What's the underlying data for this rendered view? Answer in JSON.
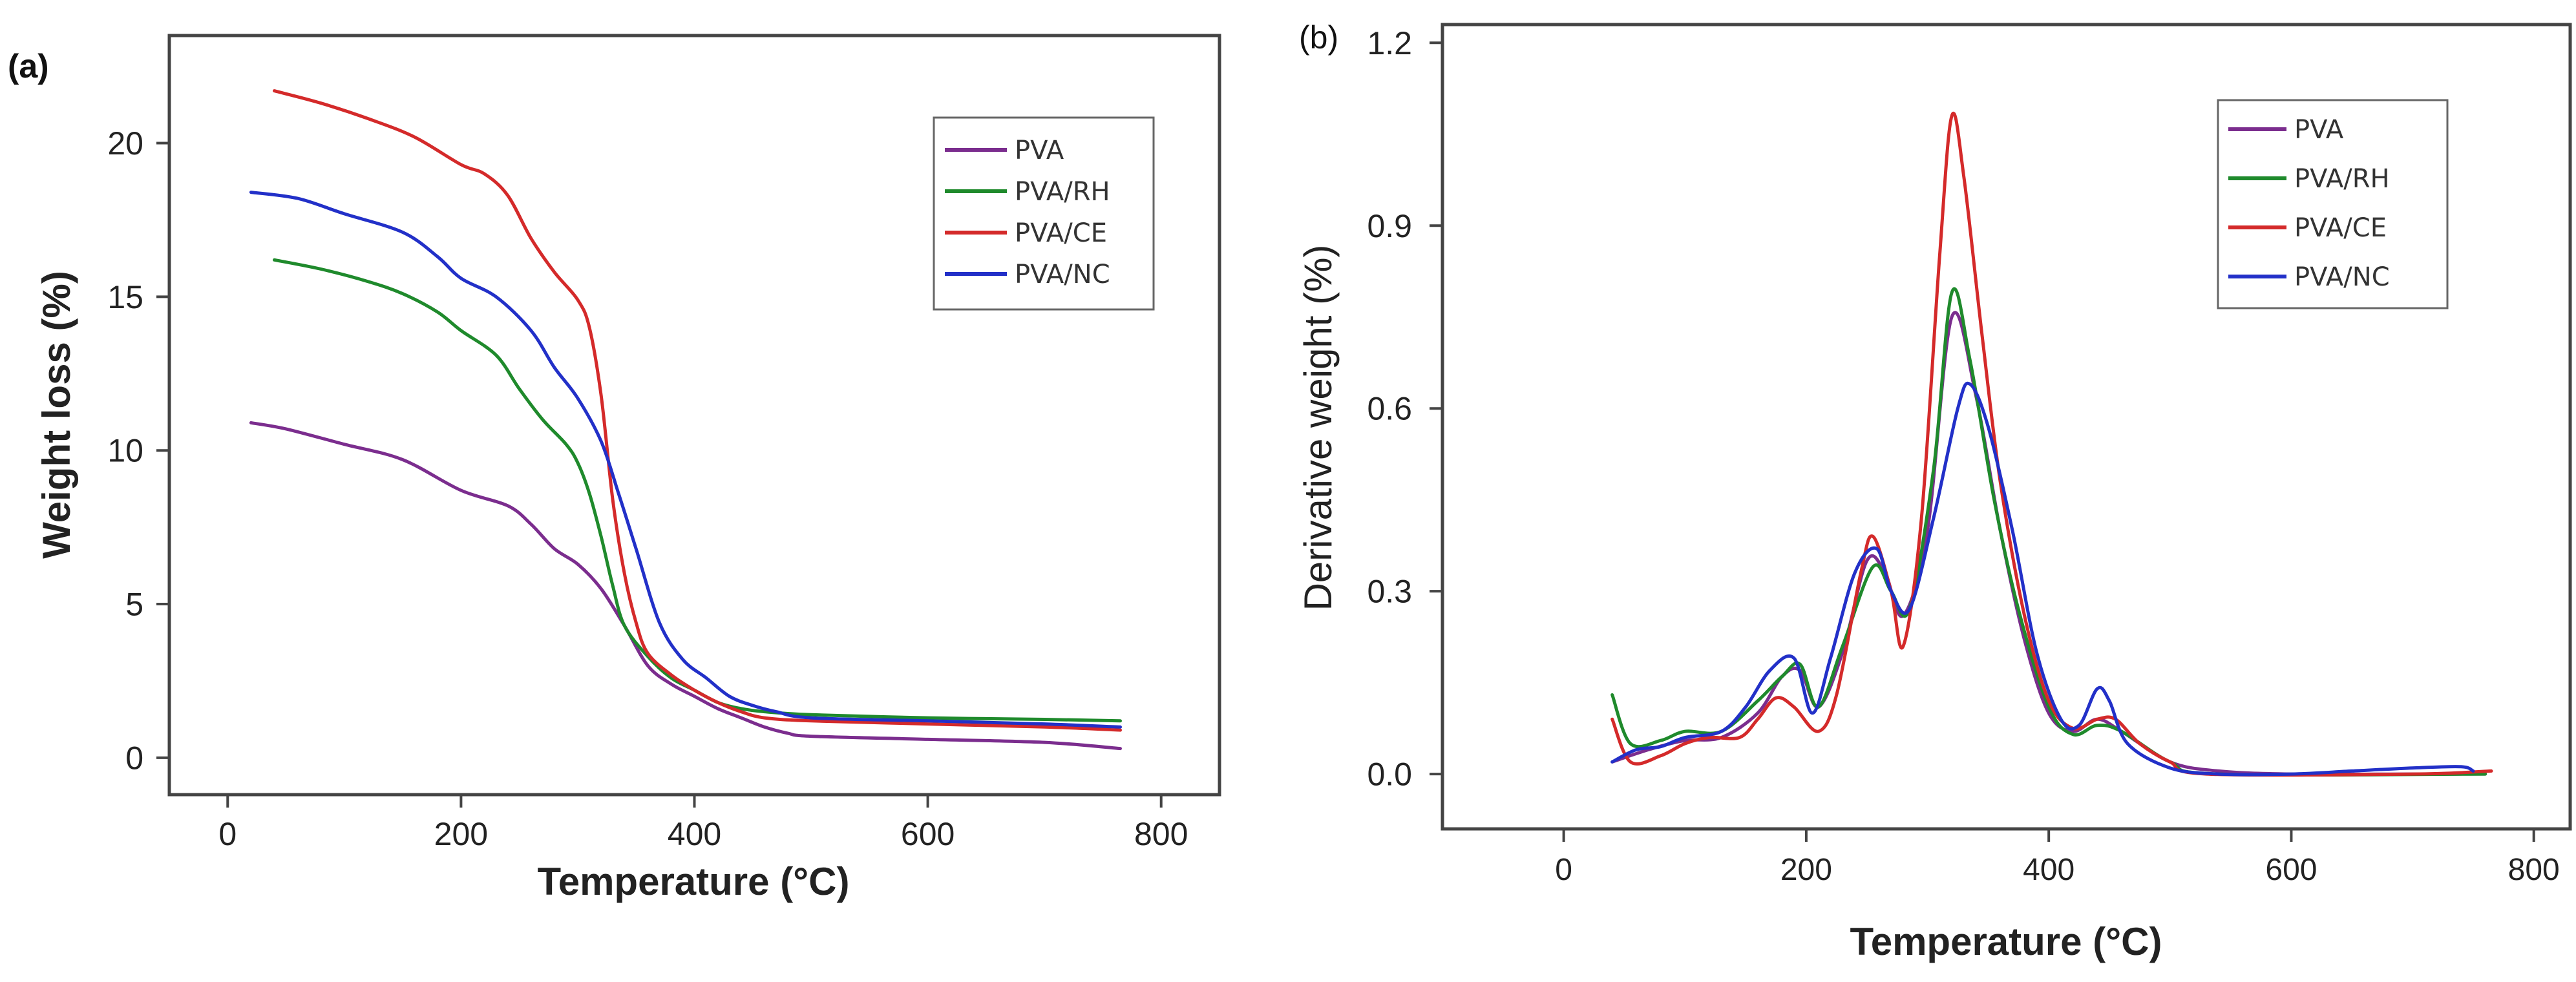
{
  "chart_data": [
    {
      "panel_label": "(a)",
      "type": "line",
      "xlabel": "Temperature (°C)",
      "ylabel": "Weight loss (%)",
      "xlim": [
        -50,
        850
      ],
      "ylim": [
        -1.2,
        23.5
      ],
      "xticks": [
        0,
        200,
        400,
        600,
        800
      ],
      "xtick_labels": [
        "0",
        "200",
        "400",
        "600",
        "800"
      ],
      "yticks": [
        0,
        5,
        10,
        15,
        20
      ],
      "ytick_labels": [
        "0",
        "5",
        "10",
        "15",
        "20"
      ],
      "legend_position": "top-right",
      "series": [
        {
          "name": "PVA",
          "color": "#7b2d8e",
          "points": [
            [
              20,
              10.9
            ],
            [
              50,
              10.7
            ],
            [
              100,
              10.2
            ],
            [
              150,
              9.7
            ],
            [
              200,
              8.7
            ],
            [
              240,
              8.2
            ],
            [
              260,
              7.6
            ],
            [
              280,
              6.8
            ],
            [
              300,
              6.3
            ],
            [
              320,
              5.5
            ],
            [
              340,
              4.3
            ],
            [
              360,
              3.0
            ],
            [
              380,
              2.4
            ],
            [
              400,
              2.0
            ],
            [
              420,
              1.6
            ],
            [
              440,
              1.3
            ],
            [
              460,
              1.0
            ],
            [
              480,
              0.8
            ],
            [
              500,
              0.7
            ],
            [
              600,
              0.6
            ],
            [
              700,
              0.5
            ],
            [
              765,
              0.3
            ]
          ]
        },
        {
          "name": "PVA/RH",
          "color": "#1f8a2c",
          "points": [
            [
              40,
              16.2
            ],
            [
              80,
              15.9
            ],
            [
              120,
              15.5
            ],
            [
              150,
              15.1
            ],
            [
              180,
              14.5
            ],
            [
              200,
              13.9
            ],
            [
              230,
              13.1
            ],
            [
              250,
              12.0
            ],
            [
              270,
              11.0
            ],
            [
              290,
              10.2
            ],
            [
              300,
              9.6
            ],
            [
              310,
              8.6
            ],
            [
              320,
              7.2
            ],
            [
              330,
              5.6
            ],
            [
              340,
              4.3
            ],
            [
              360,
              3.3
            ],
            [
              380,
              2.6
            ],
            [
              400,
              2.2
            ],
            [
              420,
              1.8
            ],
            [
              440,
              1.6
            ],
            [
              460,
              1.5
            ],
            [
              500,
              1.4
            ],
            [
              600,
              1.3
            ],
            [
              700,
              1.25
            ],
            [
              765,
              1.2
            ]
          ]
        },
        {
          "name": "PVA/CE",
          "color": "#d42a2a",
          "points": [
            [
              40,
              21.7
            ],
            [
              80,
              21.3
            ],
            [
              120,
              20.8
            ],
            [
              160,
              20.2
            ],
            [
              200,
              19.3
            ],
            [
              220,
              19.0
            ],
            [
              240,
              18.3
            ],
            [
              260,
              16.9
            ],
            [
              280,
              15.8
            ],
            [
              300,
              14.9
            ],
            [
              310,
              14.0
            ],
            [
              320,
              11.8
            ],
            [
              330,
              8.4
            ],
            [
              340,
              6.0
            ],
            [
              350,
              4.4
            ],
            [
              360,
              3.4
            ],
            [
              380,
              2.7
            ],
            [
              400,
              2.2
            ],
            [
              420,
              1.8
            ],
            [
              440,
              1.5
            ],
            [
              460,
              1.3
            ],
            [
              500,
              1.2
            ],
            [
              600,
              1.1
            ],
            [
              700,
              1.0
            ],
            [
              765,
              0.9
            ]
          ]
        },
        {
          "name": "PVA/NC",
          "color": "#2230c8",
          "points": [
            [
              20,
              18.4
            ],
            [
              60,
              18.2
            ],
            [
              100,
              17.7
            ],
            [
              150,
              17.1
            ],
            [
              180,
              16.3
            ],
            [
              200,
              15.6
            ],
            [
              230,
              15.0
            ],
            [
              260,
              13.9
            ],
            [
              280,
              12.7
            ],
            [
              300,
              11.7
            ],
            [
              320,
              10.3
            ],
            [
              335,
              8.6
            ],
            [
              350,
              6.8
            ],
            [
              370,
              4.4
            ],
            [
              390,
              3.2
            ],
            [
              410,
              2.6
            ],
            [
              430,
              2.0
            ],
            [
              450,
              1.7
            ],
            [
              470,
              1.5
            ],
            [
              500,
              1.3
            ],
            [
              600,
              1.2
            ],
            [
              700,
              1.1
            ],
            [
              765,
              1.0
            ]
          ]
        }
      ]
    },
    {
      "panel_label": "(b)",
      "type": "line",
      "xlabel": "Temperature (°C)",
      "ylabel": "Derivative weight (%)",
      "xlim": [
        -100,
        830
      ],
      "ylim": [
        -0.09,
        1.23
      ],
      "xticks": [
        0,
        200,
        400,
        600,
        800
      ],
      "xtick_labels": [
        "0",
        "200",
        "400",
        "600",
        "800"
      ],
      "yticks": [
        0.0,
        0.3,
        0.6,
        0.9,
        1.2
      ],
      "ytick_labels": [
        "0.0",
        "0.3",
        "0.6",
        "0.9",
        "1.2"
      ],
      "legend_position": "top-right",
      "series": [
        {
          "name": "PVA",
          "color": "#7b2d8e",
          "points": [
            [
              40,
              0.02
            ],
            [
              70,
              0.04
            ],
            [
              100,
              0.055
            ],
            [
              130,
              0.06
            ],
            [
              160,
              0.1
            ],
            [
              180,
              0.16
            ],
            [
              195,
              0.17
            ],
            [
              210,
              0.11
            ],
            [
              230,
              0.2
            ],
            [
              250,
              0.35
            ],
            [
              265,
              0.33
            ],
            [
              280,
              0.26
            ],
            [
              300,
              0.4
            ],
            [
              320,
              0.75
            ],
            [
              340,
              0.62
            ],
            [
              360,
              0.4
            ],
            [
              380,
              0.22
            ],
            [
              400,
              0.1
            ],
            [
              420,
              0.07
            ],
            [
              440,
              0.09
            ],
            [
              460,
              0.07
            ],
            [
              500,
              0.02
            ],
            [
              540,
              0.005
            ],
            [
              600,
              0.0
            ],
            [
              700,
              0.0
            ],
            [
              760,
              0.0
            ]
          ]
        },
        {
          "name": "PVA/RH",
          "color": "#1f8a2c",
          "points": [
            [
              40,
              0.13
            ],
            [
              55,
              0.05
            ],
            [
              80,
              0.055
            ],
            [
              100,
              0.07
            ],
            [
              130,
              0.07
            ],
            [
              160,
              0.12
            ],
            [
              180,
              0.16
            ],
            [
              195,
              0.18
            ],
            [
              210,
              0.11
            ],
            [
              230,
              0.21
            ],
            [
              255,
              0.34
            ],
            [
              270,
              0.3
            ],
            [
              285,
              0.27
            ],
            [
              305,
              0.5
            ],
            [
              320,
              0.79
            ],
            [
              335,
              0.68
            ],
            [
              355,
              0.45
            ],
            [
              375,
              0.27
            ],
            [
              400,
              0.11
            ],
            [
              420,
              0.065
            ],
            [
              440,
              0.08
            ],
            [
              460,
              0.07
            ],
            [
              500,
              0.02
            ],
            [
              540,
              0.0
            ],
            [
              760,
              0.0
            ]
          ]
        },
        {
          "name": "PVA/CE",
          "color": "#d42a2a",
          "points": [
            [
              40,
              0.09
            ],
            [
              55,
              0.02
            ],
            [
              80,
              0.03
            ],
            [
              100,
              0.05
            ],
            [
              120,
              0.06
            ],
            [
              145,
              0.06
            ],
            [
              160,
              0.09
            ],
            [
              175,
              0.125
            ],
            [
              190,
              0.11
            ],
            [
              210,
              0.07
            ],
            [
              225,
              0.13
            ],
            [
              245,
              0.33
            ],
            [
              255,
              0.39
            ],
            [
              270,
              0.3
            ],
            [
              280,
              0.21
            ],
            [
              295,
              0.42
            ],
            [
              310,
              0.85
            ],
            [
              320,
              1.08
            ],
            [
              330,
              0.98
            ],
            [
              345,
              0.72
            ],
            [
              360,
              0.48
            ],
            [
              380,
              0.26
            ],
            [
              400,
              0.12
            ],
            [
              420,
              0.075
            ],
            [
              440,
              0.09
            ],
            [
              455,
              0.09
            ],
            [
              475,
              0.05
            ],
            [
              500,
              0.02
            ],
            [
              530,
              0.0
            ],
            [
              700,
              0.0
            ],
            [
              765,
              0.005
            ]
          ]
        },
        {
          "name": "PVA/NC",
          "color": "#2230c8",
          "points": [
            [
              40,
              0.02
            ],
            [
              60,
              0.04
            ],
            [
              80,
              0.045
            ],
            [
              100,
              0.06
            ],
            [
              130,
              0.07
            ],
            [
              150,
              0.11
            ],
            [
              170,
              0.17
            ],
            [
              190,
              0.19
            ],
            [
              205,
              0.1
            ],
            [
              220,
              0.19
            ],
            [
              240,
              0.33
            ],
            [
              258,
              0.37
            ],
            [
              270,
              0.3
            ],
            [
              285,
              0.27
            ],
            [
              305,
              0.42
            ],
            [
              325,
              0.6
            ],
            [
              335,
              0.64
            ],
            [
              350,
              0.57
            ],
            [
              370,
              0.4
            ],
            [
              390,
              0.2
            ],
            [
              410,
              0.09
            ],
            [
              425,
              0.08
            ],
            [
              440,
              0.14
            ],
            [
              450,
              0.12
            ],
            [
              465,
              0.05
            ],
            [
              500,
              0.01
            ],
            [
              540,
              0.0
            ],
            [
              600,
              0.0
            ],
            [
              650,
              0.005
            ],
            [
              700,
              0.01
            ],
            [
              740,
              0.012
            ],
            [
              750,
              0.005
            ]
          ]
        }
      ]
    }
  ]
}
